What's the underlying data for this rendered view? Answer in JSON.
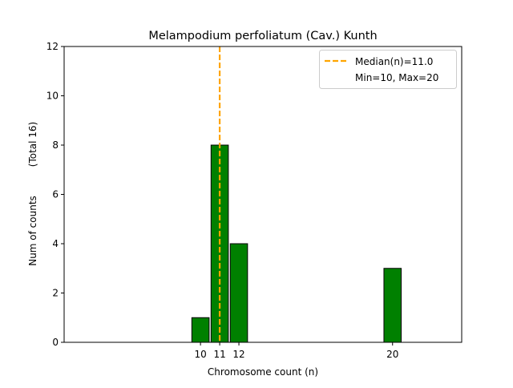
{
  "chart_data": {
    "type": "bar",
    "title": "Melampodium perfoliatum (Cav.) Kunth",
    "xlabel": "Chromosome count (n)",
    "ylabel_left": "Num of counts",
    "ylabel_right": "(Total 16)",
    "ylim": [
      0,
      12
    ],
    "xlim": [
      2.9,
      23.6
    ],
    "yticks": [
      0,
      2,
      4,
      6,
      8,
      10,
      12
    ],
    "xticks": [
      10,
      11,
      12,
      20
    ],
    "bar_width": 0.9,
    "bars": [
      {
        "x": 10,
        "value": 1
      },
      {
        "x": 11,
        "value": 8
      },
      {
        "x": 12,
        "value": 4
      },
      {
        "x": 20,
        "value": 3
      }
    ],
    "median": 11.0,
    "legend": {
      "position": "top-right",
      "median_label": "Median(n)=11.0",
      "range_label": "Min=10, Max=20"
    },
    "colors": {
      "bar_fill": "#008000",
      "bar_edge": "#000000",
      "median_line": "#ffa500"
    }
  }
}
